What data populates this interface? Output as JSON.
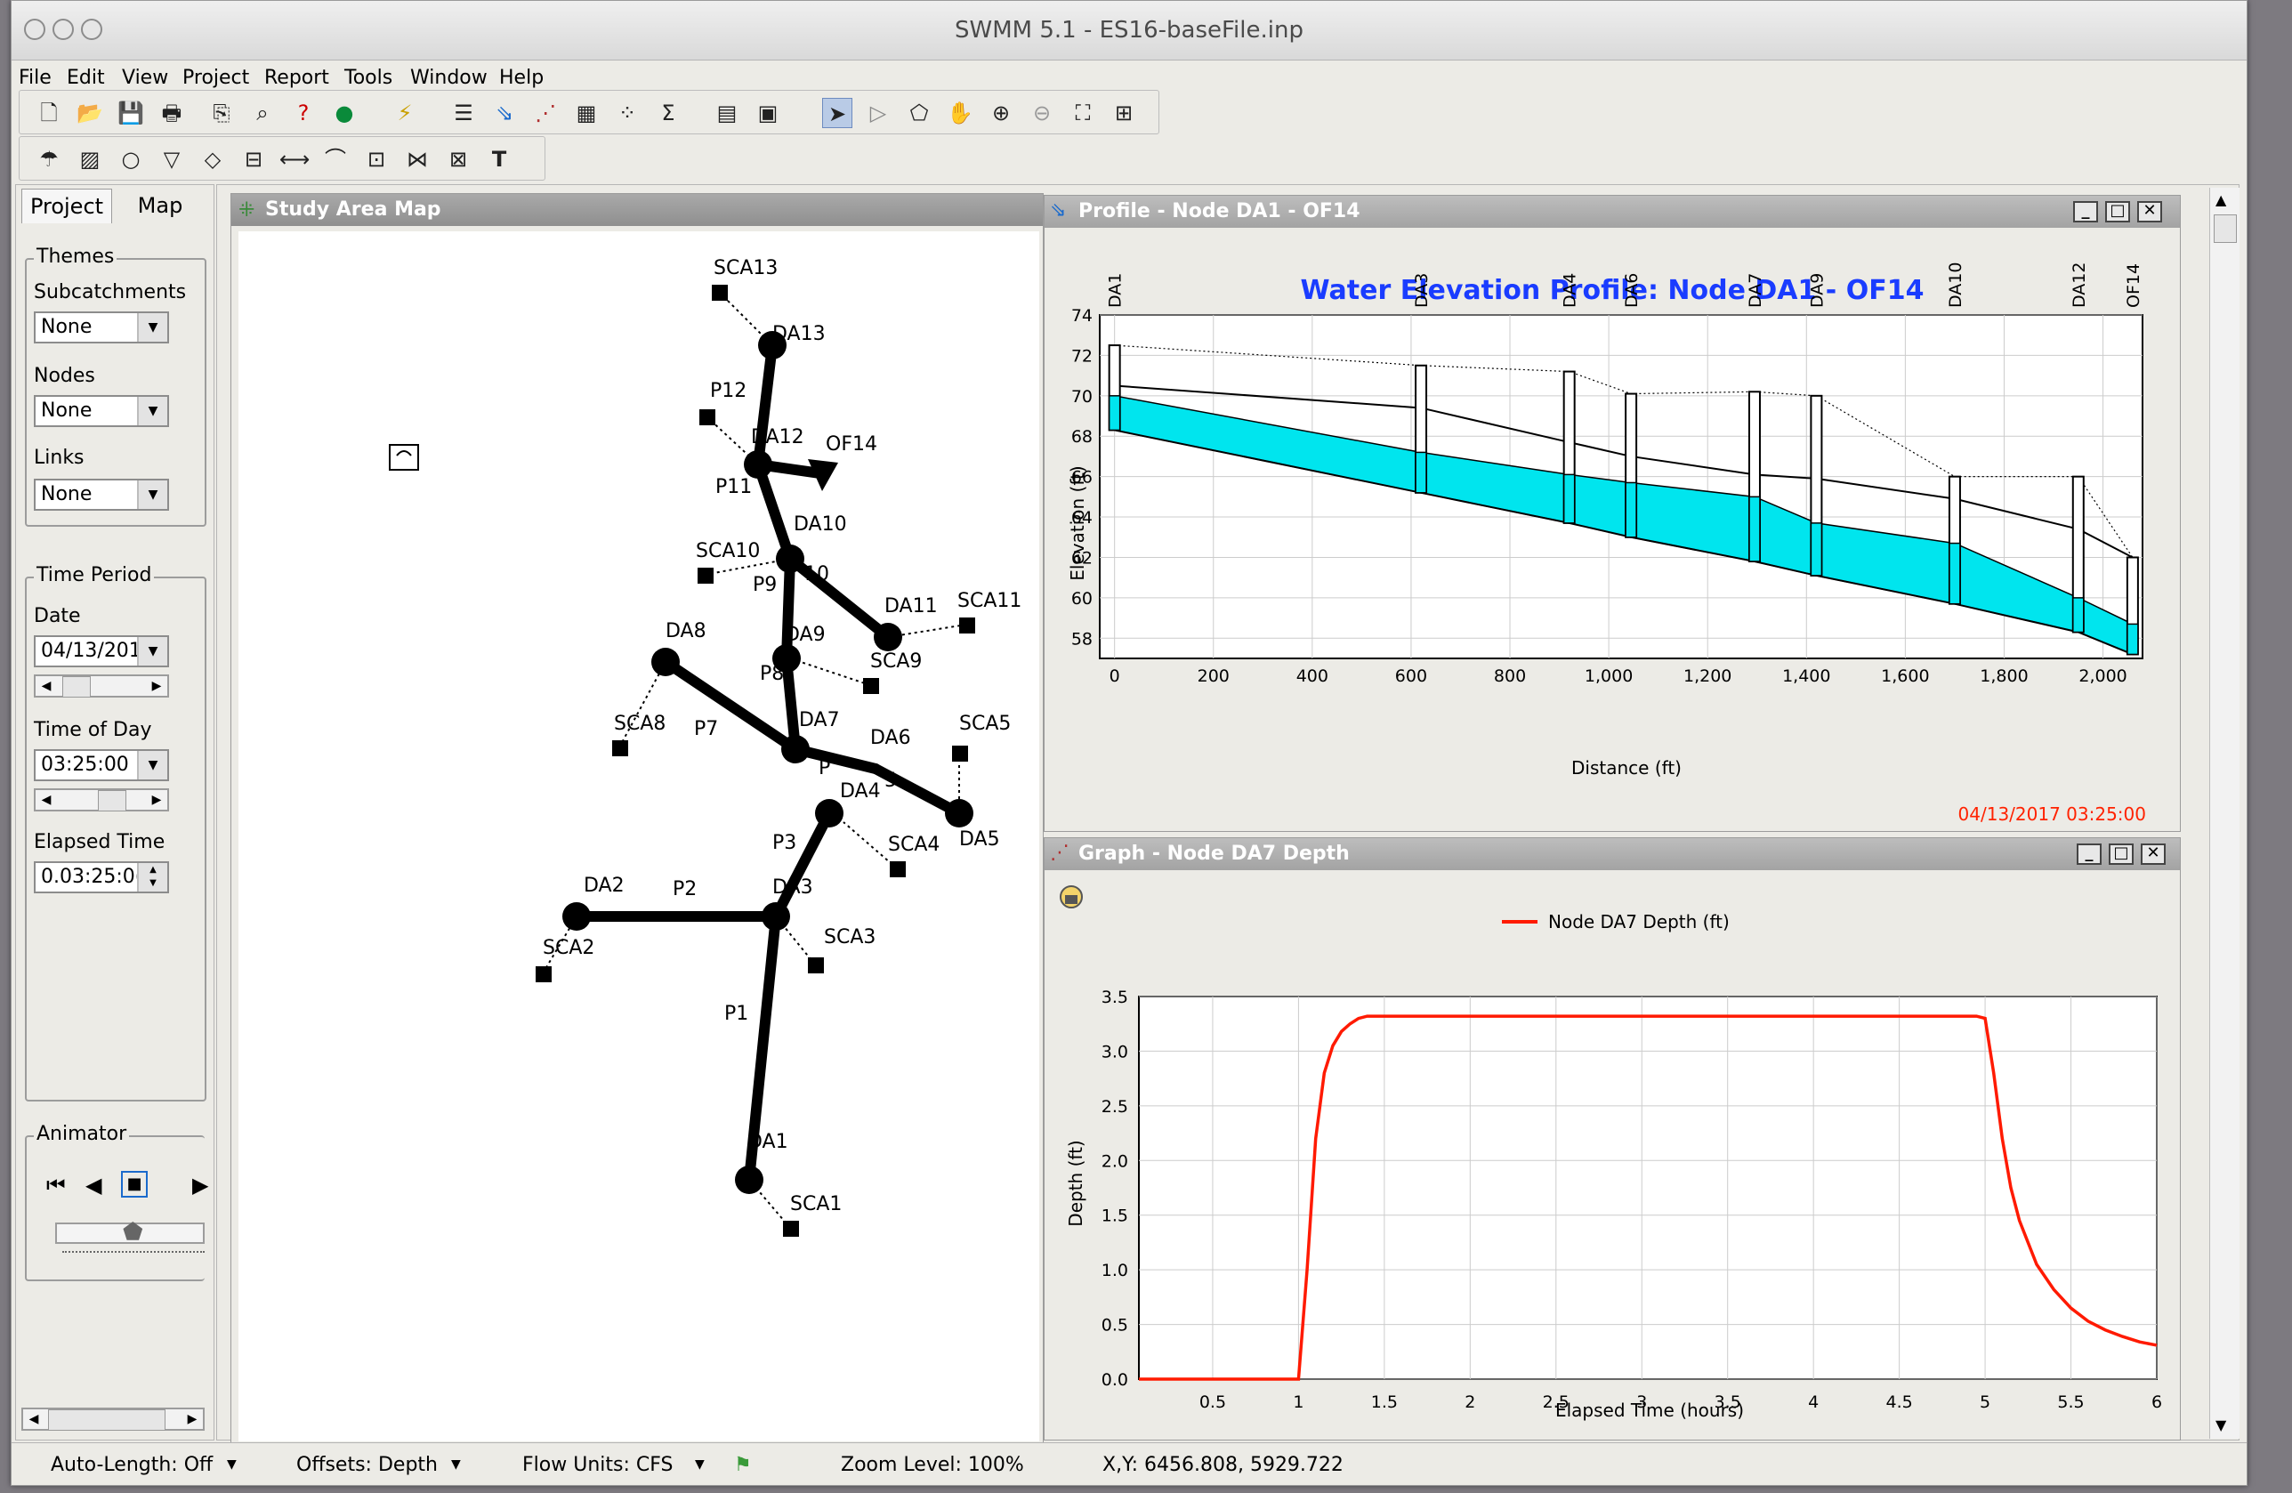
{
  "window": {
    "title": "SWMM 5.1 - ES16-baseFile.inp"
  },
  "menu": [
    "File",
    "Edit",
    "View",
    "Project",
    "Report",
    "Tools",
    "Window",
    "Help"
  ],
  "left_tabs": [
    "Project",
    "Map"
  ],
  "themes": {
    "group": "Themes",
    "subcatch_label": "Subcatchments",
    "subcatch_value": "None",
    "nodes_label": "Nodes",
    "nodes_value": "None",
    "links_label": "Links",
    "links_value": "None"
  },
  "time_period": {
    "group": "Time Period",
    "date_label": "Date",
    "date_value": "04/13/201",
    "tod_label": "Time of Day",
    "tod_value": "03:25:00",
    "elapsed_label": "Elapsed Time",
    "elapsed_value": "0.03:25:0("
  },
  "animator": {
    "group": "Animator"
  },
  "map": {
    "title": "Study Area Map",
    "labels": [
      "SCA13",
      "DA13",
      "P12",
      "DA12",
      "OF14",
      "P11",
      "DA10",
      "SCA10",
      "P9",
      "10",
      "DA11",
      "SCA11",
      "DA8",
      "DA9",
      "SCA9",
      "P8",
      "SCA8",
      "P7",
      "DA7",
      "DA6",
      "SCA5",
      "P",
      "5",
      "DA4",
      "DA5",
      "P3",
      "SCA4",
      "DA2",
      "P2",
      "DA3",
      "SCA3",
      "SCA2",
      "P1",
      "DA1",
      "SCA1"
    ]
  },
  "profile": {
    "window_title": "Profile - Node DA1 - OF14",
    "chart_title": "Water Elevation Profile:  Node DA1 - OF14",
    "ylabel": "Elevation (ft)",
    "xlabel": "Distance (ft)",
    "timestamp": "04/13/2017 03:25:00",
    "yticks": [
      "74",
      "72",
      "70",
      "68",
      "66",
      "64",
      "62",
      "60",
      "58"
    ],
    "xticks": [
      "0",
      "200",
      "400",
      "600",
      "800",
      "1,000",
      "1,200",
      "1,400",
      "1,600",
      "1,800",
      "2,000"
    ]
  },
  "graph": {
    "window_title": "Graph - Node DA7 Depth",
    "legend": "Node DA7 Depth (ft)",
    "ylabel": "Depth (ft)",
    "xlabel": "Elapsed Time (hours)",
    "yticks": [
      "3.5",
      "3.0",
      "2.5",
      "2.0",
      "1.5",
      "1.0",
      "0.5",
      "0.0"
    ],
    "xticks": [
      "0.5",
      "1",
      "1.5",
      "2",
      "2.5",
      "3",
      "3.5",
      "4",
      "4.5",
      "5",
      "5.5",
      "6"
    ]
  },
  "status": {
    "auto_length": "Auto-Length: Off",
    "offsets": "Offsets: Depth",
    "flow_units": "Flow Units: CFS",
    "zoom": "Zoom Level: 100%",
    "xy": "X,Y: 6456.808, 5929.722"
  },
  "colors": {
    "accent_blue": "#1a3cff",
    "water": "#00e5ee",
    "series_red": "#ff1a00",
    "timestamp_red": "#ff2200"
  },
  "chart_data": [
    {
      "type": "area",
      "title": "Water Elevation Profile:  Node DA1 - OF14",
      "xlabel": "Distance (ft)",
      "ylabel": "Elevation (ft)",
      "xlim": [
        -30,
        2080
      ],
      "ylim": [
        57,
        74
      ],
      "nodes": [
        {
          "name": "DA1",
          "x": 0,
          "invert": 68.3,
          "crown": 72.5
        },
        {
          "name": "DA3",
          "x": 620,
          "invert": 65.2,
          "crown": 71.5
        },
        {
          "name": "DA4",
          "x": 920,
          "invert": 63.7,
          "crown": 71.2
        },
        {
          "name": "DA6",
          "x": 1045,
          "invert": 63.0,
          "crown": 70.1
        },
        {
          "name": "DA7",
          "x": 1295,
          "invert": 61.8,
          "crown": 70.2
        },
        {
          "name": "DA9",
          "x": 1420,
          "invert": 61.1,
          "crown": 70.0
        },
        {
          "name": "DA10",
          "x": 1700,
          "invert": 59.7,
          "crown": 66.0
        },
        {
          "name": "DA12",
          "x": 1950,
          "invert": 58.3,
          "crown": 66.0
        },
        {
          "name": "OF14",
          "x": 2060,
          "invert": 57.2,
          "crown": 62.0
        }
      ],
      "series": [
        {
          "name": "water_surface",
          "x": [
            0,
            620,
            920,
            1045,
            1295,
            1420,
            1700,
            1950,
            2060
          ],
          "values": [
            70.0,
            67.2,
            66.1,
            65.7,
            65.0,
            63.7,
            62.7,
            60.0,
            58.7
          ]
        },
        {
          "name": "conduit_top",
          "x": [
            0,
            620,
            920,
            1045,
            1295,
            1420,
            1700,
            1950,
            2060
          ],
          "values": [
            70.5,
            69.4,
            67.7,
            67.0,
            66.1,
            65.9,
            64.9,
            63.4,
            62.0
          ]
        },
        {
          "name": "ground",
          "x": [
            0,
            620,
            920,
            1045,
            1295,
            1420,
            1700,
            1950,
            2060
          ],
          "values": [
            72.5,
            71.5,
            71.2,
            70.1,
            70.2,
            70.0,
            66.0,
            66.0,
            62.0
          ]
        }
      ]
    },
    {
      "type": "line",
      "title": "",
      "xlabel": "Elapsed Time (hours)",
      "ylabel": "Depth (ft)",
      "xlim": [
        0.07,
        6.0
      ],
      "ylim": [
        0,
        3.5
      ],
      "series": [
        {
          "name": "Node DA7 Depth (ft)",
          "x": [
            0.07,
            0.99,
            1.0,
            1.05,
            1.1,
            1.15,
            1.2,
            1.25,
            1.3,
            1.35,
            1.4,
            1.5,
            2,
            3,
            4,
            4.95,
            5.0,
            5.05,
            5.1,
            5.15,
            5.2,
            5.3,
            5.4,
            5.5,
            5.6,
            5.7,
            5.8,
            5.9,
            6.0
          ],
          "values": [
            0,
            0,
            0,
            1.0,
            2.2,
            2.8,
            3.05,
            3.18,
            3.25,
            3.3,
            3.32,
            3.32,
            3.32,
            3.32,
            3.32,
            3.32,
            3.3,
            2.8,
            2.2,
            1.75,
            1.45,
            1.05,
            0.82,
            0.65,
            0.53,
            0.45,
            0.39,
            0.34,
            0.31
          ]
        }
      ]
    }
  ]
}
